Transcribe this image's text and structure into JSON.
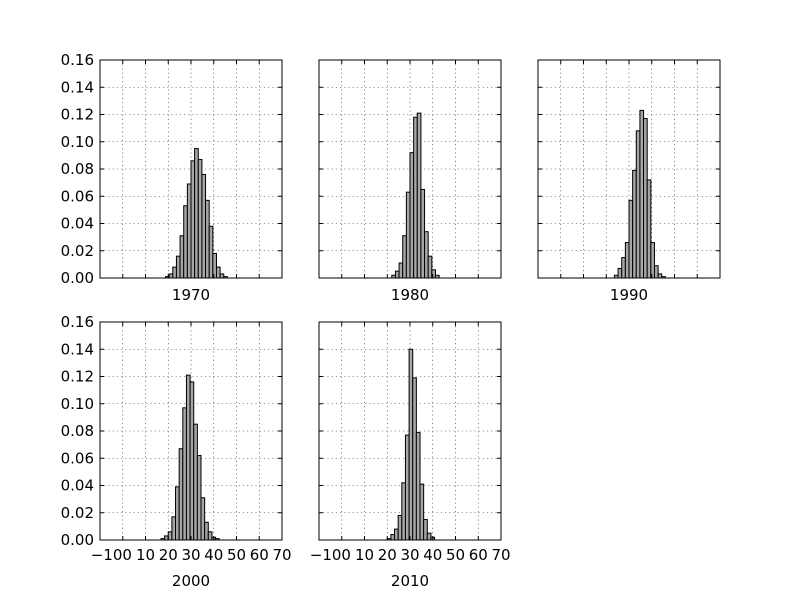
{
  "chart_data": [
    {
      "type": "bar",
      "xlabel": "1970",
      "ylim": [
        0,
        0.16
      ],
      "xlim": [
        -10,
        70
      ],
      "yticks": [
        "0.00",
        "0.02",
        "0.04",
        "0.06",
        "0.08",
        "0.10",
        "0.12",
        "0.14",
        "0.16"
      ],
      "xticks": [],
      "grid": true,
      "bin_width": 1.6,
      "bins": [
        {
          "x": 19.6,
          "value": 0.001
        },
        {
          "x": 21.2,
          "value": 0.003
        },
        {
          "x": 22.8,
          "value": 0.008
        },
        {
          "x": 24.4,
          "value": 0.016
        },
        {
          "x": 26.0,
          "value": 0.031
        },
        {
          "x": 27.6,
          "value": 0.053
        },
        {
          "x": 29.2,
          "value": 0.069
        },
        {
          "x": 30.8,
          "value": 0.086
        },
        {
          "x": 32.4,
          "value": 0.095
        },
        {
          "x": 34.0,
          "value": 0.087
        },
        {
          "x": 35.6,
          "value": 0.076
        },
        {
          "x": 37.2,
          "value": 0.057
        },
        {
          "x": 38.8,
          "value": 0.038
        },
        {
          "x": 40.4,
          "value": 0.018
        },
        {
          "x": 42.0,
          "value": 0.008
        },
        {
          "x": 43.6,
          "value": 0.003
        },
        {
          "x": 45.2,
          "value": 0.001
        }
      ]
    },
    {
      "type": "bar",
      "xlabel": "1980",
      "ylim": [
        0,
        0.16
      ],
      "xlim": [
        -10,
        70
      ],
      "yticks": [],
      "xticks": [],
      "grid": true,
      "bin_width": 1.6,
      "bins": [
        {
          "x": 22.8,
          "value": 0.002
        },
        {
          "x": 24.4,
          "value": 0.005
        },
        {
          "x": 26.0,
          "value": 0.011
        },
        {
          "x": 27.6,
          "value": 0.031
        },
        {
          "x": 29.2,
          "value": 0.063
        },
        {
          "x": 30.8,
          "value": 0.092
        },
        {
          "x": 32.4,
          "value": 0.118
        },
        {
          "x": 34.0,
          "value": 0.121
        },
        {
          "x": 35.6,
          "value": 0.065
        },
        {
          "x": 37.2,
          "value": 0.034
        },
        {
          "x": 38.8,
          "value": 0.016
        },
        {
          "x": 40.4,
          "value": 0.006
        },
        {
          "x": 42.0,
          "value": 0.002
        }
      ]
    },
    {
      "type": "bar",
      "xlabel": "1990",
      "ylim": [
        0,
        0.16
      ],
      "xlim": [
        -10,
        70
      ],
      "yticks": [],
      "xticks": [],
      "grid": true,
      "bin_width": 1.6,
      "bins": [
        {
          "x": 24.4,
          "value": 0.002
        },
        {
          "x": 26.0,
          "value": 0.007
        },
        {
          "x": 27.6,
          "value": 0.015
        },
        {
          "x": 29.2,
          "value": 0.026
        },
        {
          "x": 30.8,
          "value": 0.057
        },
        {
          "x": 32.4,
          "value": 0.079
        },
        {
          "x": 34.0,
          "value": 0.108
        },
        {
          "x": 35.6,
          "value": 0.123
        },
        {
          "x": 37.2,
          "value": 0.117
        },
        {
          "x": 38.8,
          "value": 0.072
        },
        {
          "x": 40.4,
          "value": 0.026
        },
        {
          "x": 42.0,
          "value": 0.009
        },
        {
          "x": 43.6,
          "value": 0.003
        },
        {
          "x": 45.2,
          "value": 0.001
        }
      ]
    },
    {
      "type": "bar",
      "xlabel": "2000",
      "ylim": [
        0,
        0.16
      ],
      "xlim": [
        -10,
        70
      ],
      "yticks": [
        "0.00",
        "0.02",
        "0.04",
        "0.06",
        "0.08",
        "0.10",
        "0.12",
        "0.14",
        "0.16"
      ],
      "xticks": [
        "−100",
        "10",
        "20",
        "30",
        "40",
        "50",
        "60",
        "70"
      ],
      "grid": true,
      "bin_width": 1.6,
      "bins": [
        {
          "x": 17.6,
          "value": 0.001
        },
        {
          "x": 19.2,
          "value": 0.003
        },
        {
          "x": 20.8,
          "value": 0.006
        },
        {
          "x": 22.4,
          "value": 0.017
        },
        {
          "x": 24.0,
          "value": 0.039
        },
        {
          "x": 25.6,
          "value": 0.067
        },
        {
          "x": 27.2,
          "value": 0.097
        },
        {
          "x": 28.8,
          "value": 0.121
        },
        {
          "x": 30.4,
          "value": 0.116
        },
        {
          "x": 32.0,
          "value": 0.085
        },
        {
          "x": 33.6,
          "value": 0.062
        },
        {
          "x": 35.2,
          "value": 0.031
        },
        {
          "x": 36.8,
          "value": 0.013
        },
        {
          "x": 38.4,
          "value": 0.006
        },
        {
          "x": 40.0,
          "value": 0.002
        },
        {
          "x": 41.6,
          "value": 0.001
        }
      ]
    },
    {
      "type": "bar",
      "xlabel": "2010",
      "ylim": [
        0,
        0.16
      ],
      "xlim": [
        -10,
        70
      ],
      "yticks": [],
      "xticks": [
        "−100",
        "10",
        "20",
        "30",
        "40",
        "50",
        "60",
        "70"
      ],
      "grid": true,
      "bin_width": 1.6,
      "bins": [
        {
          "x": 20.8,
          "value": 0.001
        },
        {
          "x": 22.4,
          "value": 0.004
        },
        {
          "x": 24.0,
          "value": 0.008
        },
        {
          "x": 25.6,
          "value": 0.018
        },
        {
          "x": 27.2,
          "value": 0.042
        },
        {
          "x": 28.8,
          "value": 0.077
        },
        {
          "x": 30.4,
          "value": 0.14
        },
        {
          "x": 32.0,
          "value": 0.119
        },
        {
          "x": 33.6,
          "value": 0.079
        },
        {
          "x": 35.2,
          "value": 0.041
        },
        {
          "x": 36.8,
          "value": 0.015
        },
        {
          "x": 38.4,
          "value": 0.005
        },
        {
          "x": 40.0,
          "value": 0.002
        }
      ]
    }
  ]
}
